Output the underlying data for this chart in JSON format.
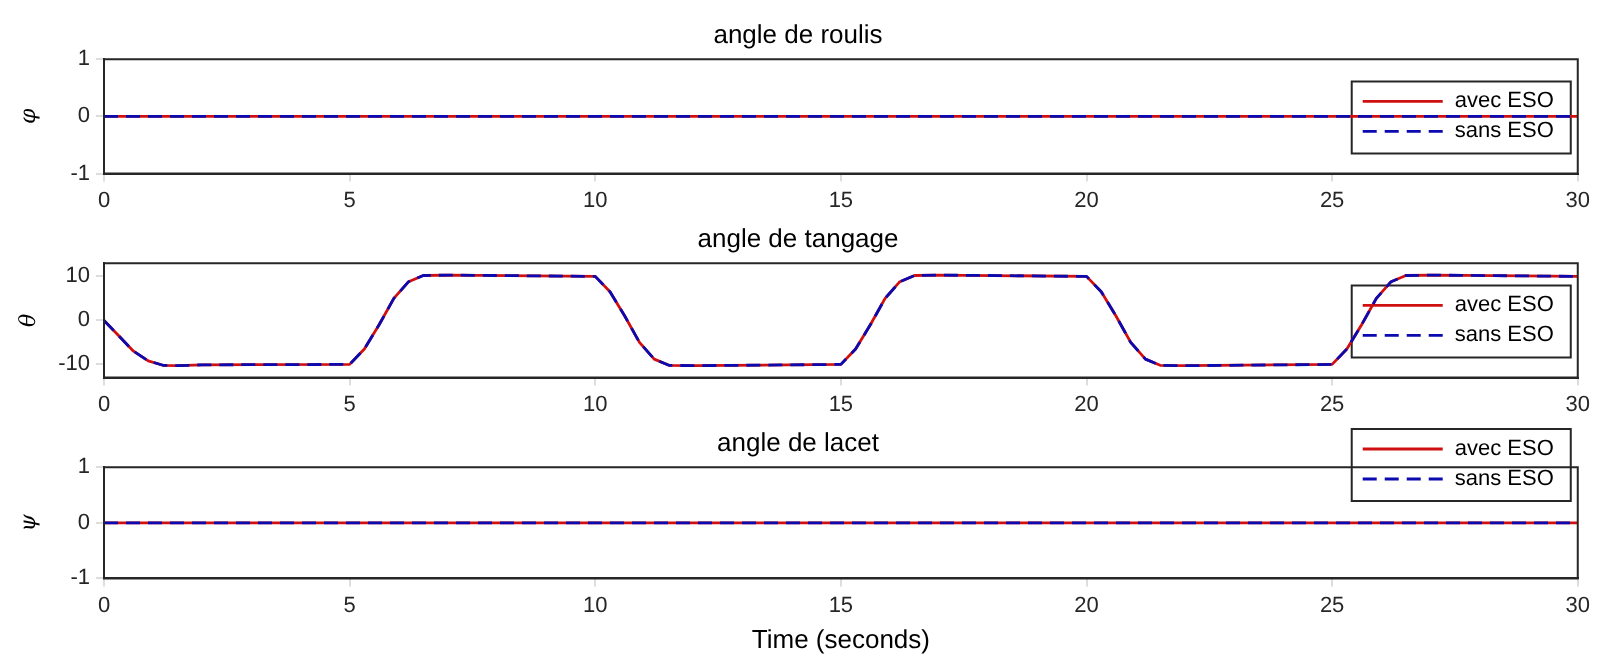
{
  "chart_data": [
    {
      "type": "line",
      "title": "angle de roulis",
      "ylabel": "φ",
      "legend": "right",
      "grid": false,
      "xlim": [
        0,
        30
      ],
      "xticks": [
        0,
        5,
        10,
        15,
        20,
        25,
        30
      ],
      "ylim": [
        -1,
        1
      ],
      "yticks": [
        -1,
        0,
        1
      ],
      "series": [
        {
          "name": "avec ESO",
          "color": "#d01010",
          "line_style": "solid",
          "x": [
            0,
            30
          ],
          "values": [
            0,
            0
          ]
        },
        {
          "name": "sans ESO",
          "color": "#0a0ab0",
          "line_style": "dashed",
          "x": [
            0,
            30
          ],
          "values": [
            0,
            0
          ]
        }
      ]
    },
    {
      "type": "line",
      "title": "angle de tangage",
      "ylabel": "θ",
      "legend": "right",
      "grid": false,
      "xlim": [
        0,
        30
      ],
      "xticks": [
        0,
        5,
        10,
        15,
        20,
        25,
        30
      ],
      "ylim": [
        -13,
        13
      ],
      "yticks": [
        -10,
        0,
        10
      ],
      "series": [
        {
          "name": "avec ESO",
          "color": "#d01010",
          "line_style": "solid",
          "x": [
            0,
            0.3,
            0.6,
            0.9,
            1.2,
            1.5,
            2,
            5,
            5.3,
            5.6,
            5.9,
            6.2,
            6.5,
            7,
            10,
            10.3,
            10.6,
            10.9,
            11.2,
            11.5,
            12,
            15,
            15.3,
            15.6,
            15.9,
            16.2,
            16.5,
            17,
            20,
            20.3,
            20.6,
            20.9,
            21.2,
            21.5,
            22,
            25,
            25.3,
            25.6,
            25.9,
            26.2,
            26.5,
            27,
            30
          ],
          "values": [
            0,
            -3.5,
            -7,
            -9.2,
            -10.2,
            -10.3,
            -10.1,
            -10,
            -6.5,
            -1,
            5,
            8.8,
            10.2,
            10.3,
            10,
            6.5,
            1,
            -5,
            -8.8,
            -10.2,
            -10.3,
            -10,
            -6.5,
            -1,
            5,
            8.8,
            10.2,
            10.3,
            10,
            6.5,
            1,
            -5,
            -8.8,
            -10.2,
            -10.3,
            -10,
            -6.5,
            -1,
            5,
            8.8,
            10.2,
            10.3,
            10
          ]
        },
        {
          "name": "sans ESO",
          "color": "#0a0ab0",
          "line_style": "dashed",
          "x": [
            0,
            0.3,
            0.6,
            0.9,
            1.2,
            1.5,
            2,
            5,
            5.3,
            5.6,
            5.9,
            6.2,
            6.5,
            7,
            10,
            10.3,
            10.6,
            10.9,
            11.2,
            11.5,
            12,
            15,
            15.3,
            15.6,
            15.9,
            16.2,
            16.5,
            17,
            20,
            20.3,
            20.6,
            20.9,
            21.2,
            21.5,
            22,
            25,
            25.3,
            25.6,
            25.9,
            26.2,
            26.5,
            27,
            30
          ],
          "values": [
            0,
            -3.5,
            -7,
            -9.2,
            -10.2,
            -10.3,
            -10.1,
            -10,
            -6.5,
            -1,
            5,
            8.8,
            10.2,
            10.3,
            10,
            6.5,
            1,
            -5,
            -8.8,
            -10.2,
            -10.3,
            -10,
            -6.5,
            -1,
            5,
            8.8,
            10.2,
            10.3,
            10,
            6.5,
            1,
            -5,
            -8.8,
            -10.2,
            -10.3,
            -10,
            -6.5,
            -1,
            5,
            8.8,
            10.2,
            10.3,
            10
          ]
        }
      ]
    },
    {
      "type": "line",
      "title": "angle de lacet",
      "ylabel": "ψ",
      "xlabel": "Time (seconds)",
      "legend": "top right",
      "grid": false,
      "xlim": [
        0,
        30
      ],
      "xticks": [
        0,
        5,
        10,
        15,
        20,
        25,
        30
      ],
      "ylim": [
        -1,
        1
      ],
      "yticks": [
        -1,
        0,
        1
      ],
      "series": [
        {
          "name": "avec ESO",
          "color": "#d01010",
          "line_style": "solid",
          "x": [
            0,
            30
          ],
          "values": [
            0,
            0
          ]
        },
        {
          "name": "sans ESO",
          "color": "#0a0ab0",
          "line_style": "dashed",
          "x": [
            0,
            30
          ],
          "values": [
            0,
            0
          ]
        }
      ]
    }
  ]
}
